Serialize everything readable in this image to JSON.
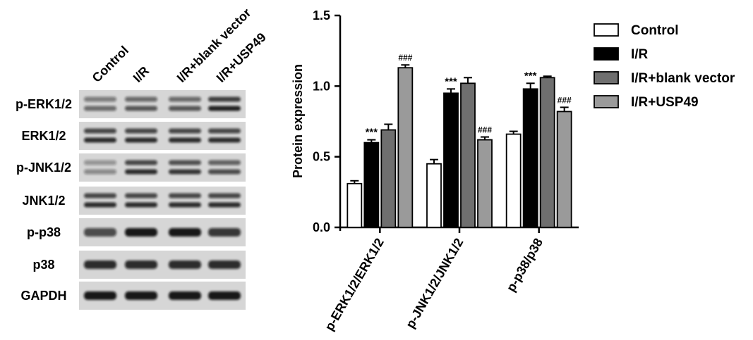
{
  "blot": {
    "column_labels": [
      "Control",
      "I/R",
      "I/R+blank vector",
      "I/R+USP49"
    ],
    "row_labels": [
      "p-ERK1/2",
      "ERK1/2",
      "p-JNK1/2",
      "JNK1/2",
      "p-p38",
      "p38",
      "GAPDH"
    ],
    "band_pattern": [
      "double",
      "double",
      "double",
      "double",
      "single",
      "single",
      "single"
    ],
    "band_intensity": [
      [
        0.55,
        0.65,
        0.65,
        0.9
      ],
      [
        0.85,
        0.85,
        0.85,
        0.85
      ],
      [
        0.4,
        0.85,
        0.8,
        0.7
      ],
      [
        0.85,
        0.85,
        0.85,
        0.85
      ],
      [
        0.7,
        0.95,
        0.95,
        0.8
      ],
      [
        0.85,
        0.85,
        0.85,
        0.85
      ],
      [
        0.95,
        0.95,
        0.95,
        0.95
      ]
    ]
  },
  "chart_data": {
    "type": "bar",
    "categories": [
      "p-ERK1/2/ERK1/2",
      "p-JNK1/2/JNK1/2",
      "p-p38/p38"
    ],
    "series": [
      {
        "name": "Control",
        "color": "#ffffff",
        "values": [
          0.31,
          0.45,
          0.66
        ],
        "errors": [
          0.02,
          0.03,
          0.02
        ]
      },
      {
        "name": "I/R",
        "color": "#000000",
        "values": [
          0.6,
          0.95,
          0.98
        ],
        "errors": [
          0.02,
          0.03,
          0.04
        ]
      },
      {
        "name": "I/R+blank vector",
        "color": "#6f6f6f",
        "values": [
          0.69,
          1.02,
          1.06
        ],
        "errors": [
          0.04,
          0.04,
          0.01
        ]
      },
      {
        "name": "I/R+USP49",
        "color": "#9a9a9a",
        "values": [
          1.13,
          0.62,
          0.82
        ],
        "errors": [
          0.02,
          0.02,
          0.03
        ]
      }
    ],
    "annotations": [
      {
        "category": "p-ERK1/2/ERK1/2",
        "series": "I/R",
        "text": "***"
      },
      {
        "category": "p-ERK1/2/ERK1/2",
        "series": "I/R+USP49",
        "text": "###"
      },
      {
        "category": "p-JNK1/2/JNK1/2",
        "series": "I/R",
        "text": "***"
      },
      {
        "category": "p-JNK1/2/JNK1/2",
        "series": "I/R+USP49",
        "text": "###"
      },
      {
        "category": "p-p38/p38",
        "series": "I/R",
        "text": "***"
      },
      {
        "category": "p-p38/p38",
        "series": "I/R+USP49",
        "text": "###"
      }
    ],
    "ylabel": "Protein expression",
    "xlabel": "",
    "ylim": [
      0.0,
      1.5
    ],
    "yticks": [
      "0.0",
      "0.5",
      "1.0",
      "1.5"
    ],
    "ytick_values": [
      0.0,
      0.5,
      1.0,
      1.5
    ],
    "legend_position": "top-right",
    "grid": false
  }
}
